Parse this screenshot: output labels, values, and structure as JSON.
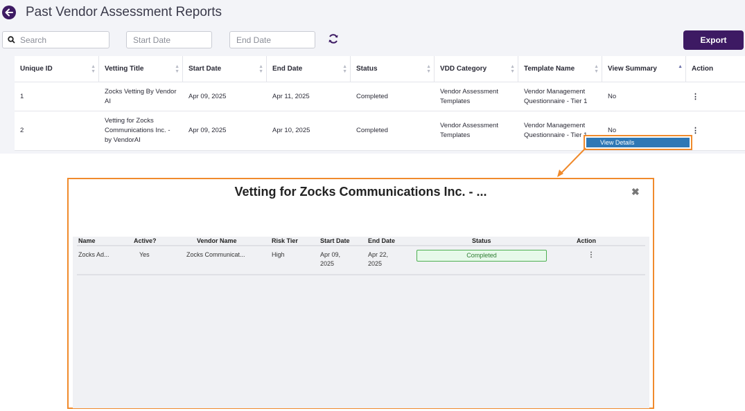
{
  "page": {
    "title": "Past Vendor Assessment Reports"
  },
  "filters": {
    "search_placeholder": "Search",
    "start_date_placeholder": "Start Date",
    "end_date_placeholder": "End Date"
  },
  "toolbar": {
    "export_label": "Export"
  },
  "table": {
    "headers": [
      "Unique ID",
      "Vetting Title",
      "Start Date",
      "End Date",
      "Status",
      "VDD Category",
      "Template Name",
      "View Summary",
      "Action"
    ],
    "rows": [
      {
        "id": "1",
        "title": "Zocks Vetting By Vendor AI",
        "start": "Apr 09, 2025",
        "end": "Apr 11, 2025",
        "status": "Completed",
        "category": "Vendor Assessment Templates",
        "template": "Vendor Management Questionnaire - Tier 1",
        "summary": "No",
        "action": "⋮"
      },
      {
        "id": "2",
        "title": "Vetting for Zocks Communications Inc. - by VendorAI",
        "start": "Apr 09, 2025",
        "end": "Apr 10, 2025",
        "status": "Completed",
        "category": "Vendor Assessment Templates",
        "template": "Vendor Management Questionnaire - Tier 1",
        "summary": "No",
        "action": "⋮"
      }
    ]
  },
  "action_menu": {
    "view_details": "View Details"
  },
  "modal": {
    "title": "Vetting for Zocks Communications Inc. - ...",
    "close": "✖",
    "headers": [
      "Name",
      "Active?",
      "Vendor Name",
      "Risk Tier",
      "Start Date",
      "End Date",
      "Status",
      "Action"
    ],
    "row": {
      "name": "Zocks Ad...",
      "active": "Yes",
      "vendor": "Zocks Communicat...",
      "risk": "High",
      "start": "Apr 09, 2025",
      "end": "Apr 22, 2025",
      "status": "Completed",
      "action": "⋮"
    }
  },
  "colors": {
    "brand": "#3d1a63",
    "highlight": "#f08a2c",
    "menu_item": "#2f78b5",
    "status_green": "#4caf50"
  }
}
